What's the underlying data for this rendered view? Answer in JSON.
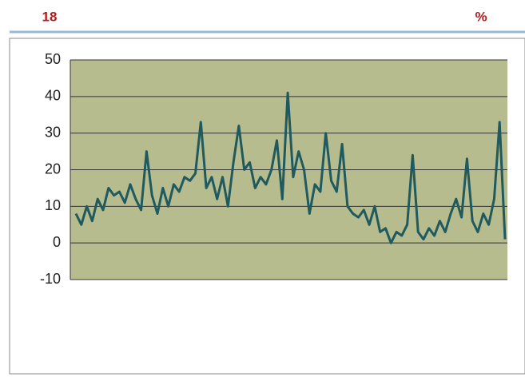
{
  "header": {
    "left": "18",
    "right": "%"
  },
  "chart_data": {
    "type": "line",
    "categories": [
      null,
      null,
      null,
      null,
      null,
      null,
      null,
      null,
      null,
      null,
      null,
      null,
      null,
      null,
      null,
      null,
      null,
      null,
      null,
      null,
      null,
      null,
      null,
      null,
      null,
      null,
      null,
      null,
      null,
      null,
      null,
      null,
      null,
      null,
      null,
      null,
      null,
      null,
      null,
      null,
      null,
      null,
      null,
      null,
      null,
      null,
      null,
      null,
      null,
      null,
      null,
      null,
      null,
      null,
      null,
      null,
      null,
      null,
      null,
      null,
      null,
      null,
      null,
      null,
      null,
      null,
      null,
      null,
      null,
      null,
      null,
      null,
      null,
      null,
      null,
      null,
      null,
      null,
      null,
      null
    ],
    "values": [
      8,
      5,
      10,
      6,
      12,
      9,
      15,
      13,
      14,
      11,
      16,
      12,
      9,
      25,
      13,
      8,
      15,
      10,
      16,
      14,
      18,
      17,
      19,
      33,
      15,
      18,
      12,
      18,
      10,
      22,
      32,
      20,
      22,
      15,
      18,
      16,
      20,
      28,
      12,
      41,
      18,
      25,
      20,
      8,
      16,
      14,
      30,
      17,
      14,
      27,
      10,
      8,
      7,
      9,
      5,
      10,
      3,
      4,
      0,
      3,
      2,
      5,
      24,
      3,
      1,
      4,
      2,
      6,
      3,
      8,
      12,
      7,
      23,
      6,
      3,
      8,
      5,
      12,
      33,
      1
    ],
    "color": "#1f5a5e",
    "ylim": [
      -10,
      50
    ],
    "yticks": [
      -10,
      0,
      10,
      20,
      30,
      40,
      50
    ],
    "grid": true
  }
}
